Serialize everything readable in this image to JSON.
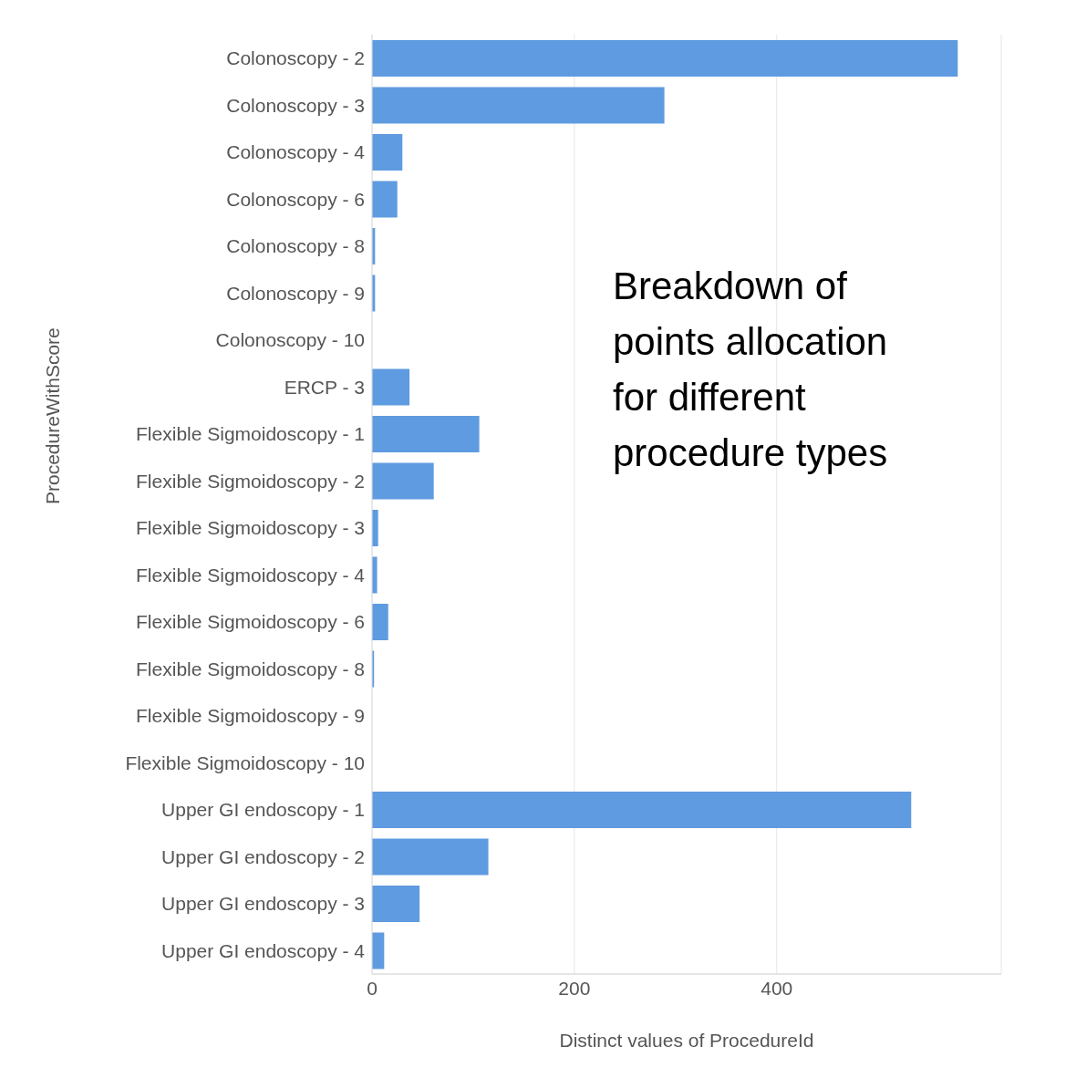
{
  "chart_data": {
    "type": "bar",
    "orientation": "horizontal",
    "xlabel": "Distinct values of ProcedureId",
    "ylabel": "ProcedureWithScore",
    "categories": [
      "Colonoscopy - 2",
      "Colonoscopy - 3",
      "Colonoscopy - 4",
      "Colonoscopy - 6",
      "Colonoscopy - 8",
      "Colonoscopy - 9",
      "Colonoscopy - 10",
      "ERCP - 3",
      "Flexible Sigmoidoscopy - 1",
      "Flexible Sigmoidoscopy - 2",
      "Flexible Sigmoidoscopy - 3",
      "Flexible Sigmoidoscopy - 4",
      "Flexible Sigmoidoscopy - 6",
      "Flexible Sigmoidoscopy - 8",
      "Flexible Sigmoidoscopy - 9",
      "Flexible Sigmoidoscopy - 10",
      "Upper GI endoscopy - 1",
      "Upper GI endoscopy - 2",
      "Upper GI endoscopy - 3",
      "Upper GI endoscopy - 4"
    ],
    "values": [
      579,
      289,
      30,
      25,
      3,
      3,
      0,
      37,
      106,
      61,
      6,
      5,
      16,
      2,
      0,
      0,
      533,
      115,
      47,
      12
    ],
    "color": "#5f9be0",
    "xlim": [
      0,
      622
    ],
    "xticks": [
      0,
      200,
      400
    ],
    "grid": "x",
    "annotations": [
      "Breakdown of points allocation for different procedure types"
    ]
  }
}
